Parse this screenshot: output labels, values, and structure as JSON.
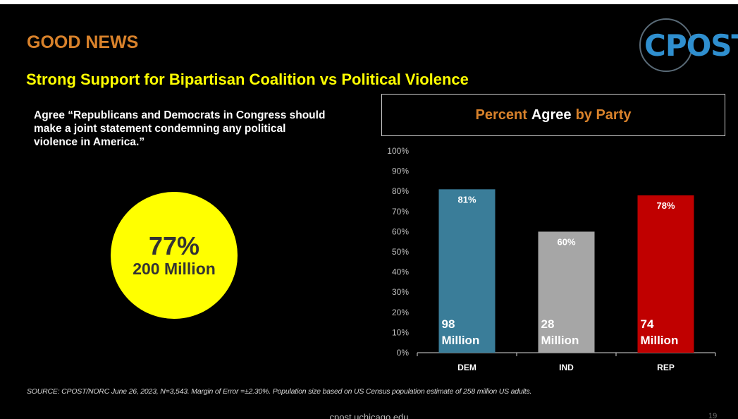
{
  "heading": "GOOD NEWS",
  "subheading": "Strong Support for Bipartisan Coalition vs Political Violence",
  "logo_text": "CPOST",
  "quote": "Agree “Republicans and Democrats in Congress should make a joint statement condemning any political violence in America.”",
  "overall": {
    "percent": "77%",
    "people": "200 Million"
  },
  "chart_title": {
    "part1": "Percent",
    "part2": "Agree",
    "part3": "by Party"
  },
  "chart_data": {
    "type": "bar",
    "title": "Percent Agree by Party",
    "categories": [
      "DEM",
      "IND",
      "REP"
    ],
    "values": [
      81,
      60,
      78
    ],
    "value_labels": [
      "81%",
      "60%",
      "78%"
    ],
    "population_labels": [
      [
        "98",
        "Million"
      ],
      [
        "28",
        "Million"
      ],
      [
        "74",
        "Million"
      ]
    ],
    "colors": [
      "#3a7d99",
      "#a6a6a6",
      "#c00000"
    ],
    "ylim": [
      0,
      100
    ],
    "yticks": [
      "0%",
      "10%",
      "20%",
      "30%",
      "40%",
      "50%",
      "60%",
      "70%",
      "80%",
      "90%",
      "100%"
    ],
    "xlabel": "",
    "ylabel": "",
    "grid": false
  },
  "source": "SOURCE: CPOST/NORC June 26, 2023, N=3,543. Margin of Error =±2.30%. Population size based on US Census population estimate of 258 million US adults.",
  "footer_url": "cpost.uchicago.edu",
  "page_number": "19"
}
